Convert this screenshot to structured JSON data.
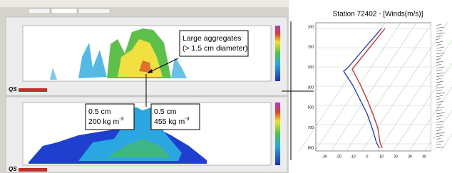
{
  "annotations": [
    {
      "lines": [
        {
          "text": "Large aggregates"
        },
        {
          "text": "(> 1.5 cm diameter)"
        }
      ]
    },
    {
      "lines": [
        {
          "text": "0.5 cm"
        },
        {
          "text": "200 kg m",
          "sup": "-3"
        }
      ]
    },
    {
      "lines": [
        {
          "text": "0.5 cm"
        },
        {
          "text": "455 kg m",
          "sup": "-3"
        }
      ]
    }
  ],
  "skewt": {
    "title": "Station 72402 - [Winds(m/s)]",
    "xticks": [
      "-30",
      "-20",
      "-10",
      "0",
      "10",
      "20",
      "30",
      "40"
    ],
    "yticks": [
      "100",
      "150",
      "200",
      "300",
      "500",
      "700",
      "850"
    ]
  }
}
